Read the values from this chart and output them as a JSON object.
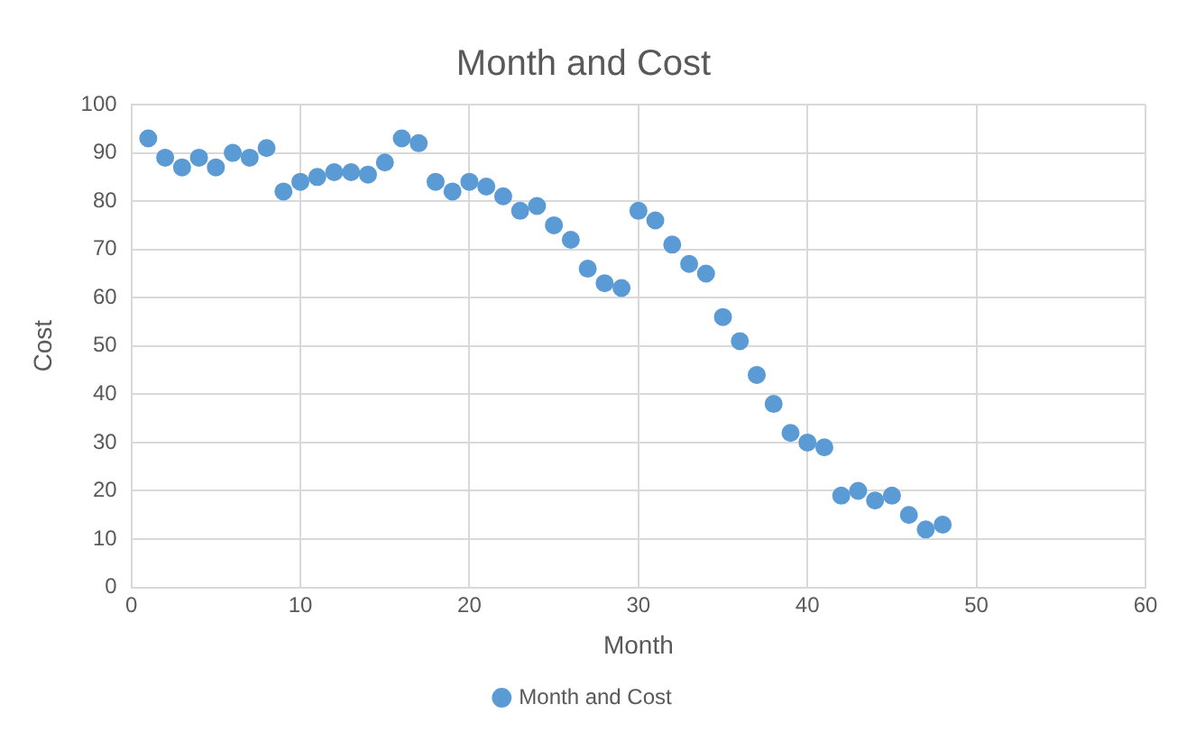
{
  "chart_data": {
    "type": "scatter",
    "title": "Month and Cost",
    "xlabel": "Month",
    "ylabel": "Cost",
    "x": [
      1,
      2,
      3,
      4,
      5,
      6,
      7,
      8,
      9,
      10,
      11,
      12,
      13,
      14,
      15,
      16,
      17,
      18,
      19,
      20,
      21,
      22,
      23,
      24,
      25,
      26,
      27,
      28,
      29,
      30,
      31,
      32,
      33,
      34,
      35,
      36,
      37,
      38,
      39,
      40,
      41,
      42,
      43,
      44,
      45,
      46,
      47,
      48
    ],
    "series": [
      {
        "name": "Month and Cost",
        "color": "#5b9bd5",
        "values": [
          93,
          89,
          87,
          89,
          87,
          90,
          89,
          91,
          82,
          84,
          85,
          86,
          86,
          85.5,
          88,
          93,
          92,
          84,
          82,
          84,
          83,
          81,
          78,
          79,
          75,
          72,
          66,
          63,
          62,
          78,
          76,
          71,
          67,
          65,
          56,
          51,
          44,
          38,
          32,
          30,
          29,
          19,
          20,
          18,
          19,
          15,
          12,
          13
        ]
      }
    ],
    "xlim": [
      0,
      60
    ],
    "xticks": [
      0,
      10,
      20,
      30,
      40,
      50,
      60
    ],
    "ylim": [
      0,
      100
    ],
    "yticks": [
      0,
      10,
      20,
      30,
      40,
      50,
      60,
      70,
      80,
      90,
      100
    ],
    "grid": true,
    "legend": "bottom",
    "marker": "circle"
  }
}
